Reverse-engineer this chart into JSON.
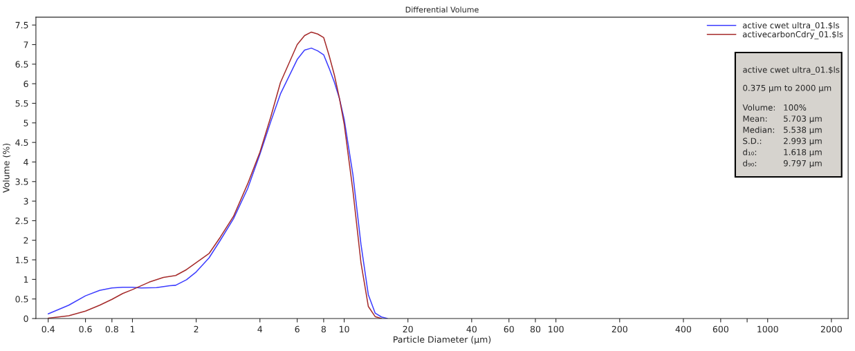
{
  "chart_data": {
    "type": "line",
    "title": "Differential Volume",
    "xlabel": "Particle Diameter (µm)",
    "ylabel": "Volume (%)",
    "log": "x",
    "xlim": [
      0.35,
      2400
    ],
    "xticks": [
      0.4,
      0.6,
      0.8,
      1,
      2,
      4,
      6,
      8,
      10,
      20,
      40,
      60,
      80,
      100,
      200,
      400,
      600,
      {
        "value": 800,
        "label": null
      },
      1000,
      2000
    ],
    "ylim": [
      0,
      7.7
    ],
    "yticks": [
      0,
      0.5,
      1,
      1.5,
      2,
      2.5,
      3,
      3.5,
      4,
      4.5,
      5,
      5.5,
      6,
      6.5,
      7,
      7.5
    ],
    "grid": false,
    "legend": "top right",
    "marker": "none",
    "line_style": "solid",
    "series": [
      {
        "name": "active cwet ultra_01.$ls",
        "color": "#3c3cff",
        "x": [
          0.4,
          0.5,
          0.6,
          0.7,
          0.8,
          0.9,
          1.0,
          1.1,
          1.3,
          1.5,
          1.6,
          1.8,
          2.0,
          2.3,
          2.6,
          3.0,
          3.5,
          4.0,
          4.5,
          5,
          6,
          6.5,
          7,
          7.5,
          8,
          8.5,
          9,
          9.5,
          10,
          11,
          12,
          13,
          14,
          15,
          16
        ],
        "values": [
          0.12,
          0.34,
          0.58,
          0.72,
          0.78,
          0.8,
          0.8,
          0.78,
          0.79,
          0.84,
          0.85,
          0.99,
          1.19,
          1.55,
          2.0,
          2.55,
          3.32,
          4.2,
          5.03,
          5.74,
          6.62,
          6.86,
          6.91,
          6.84,
          6.74,
          6.39,
          6.03,
          5.62,
          5.09,
          3.67,
          1.9,
          0.61,
          0.14,
          0.04,
          0
        ]
      },
      {
        "name": "activecarbonCdry_01.$ls",
        "color": "#a52a2a",
        "x": [
          0.4,
          0.5,
          0.6,
          0.7,
          0.8,
          0.9,
          1.0,
          1.2,
          1.4,
          1.6,
          1.8,
          2.0,
          2.3,
          2.6,
          3.0,
          3.5,
          4.0,
          4.5,
          5,
          6,
          6.5,
          7,
          7.5,
          8,
          8.5,
          9,
          9.5,
          10,
          11,
          12,
          13,
          14,
          15
        ],
        "values": [
          0.01,
          0.07,
          0.19,
          0.34,
          0.49,
          0.64,
          0.74,
          0.93,
          1.05,
          1.1,
          1.25,
          1.43,
          1.66,
          2.08,
          2.61,
          3.44,
          4.25,
          5.15,
          6.03,
          7.0,
          7.23,
          7.32,
          7.27,
          7.18,
          6.71,
          6.21,
          5.62,
          4.97,
          3.26,
          1.43,
          0.31,
          0.05,
          0
        ]
      }
    ],
    "annotations": [
      "active cwet ultra_01.$ls",
      "0.375 µm to 2000 µm",
      "Volume:",
      "100%",
      "Mean:",
      "5.703 µm",
      "Median:",
      "5.538 µm",
      "S.D.:",
      "2.993 µm",
      "d₁₀:",
      "1.618 µm",
      "d₉₀:",
      "9.797 µm"
    ]
  }
}
